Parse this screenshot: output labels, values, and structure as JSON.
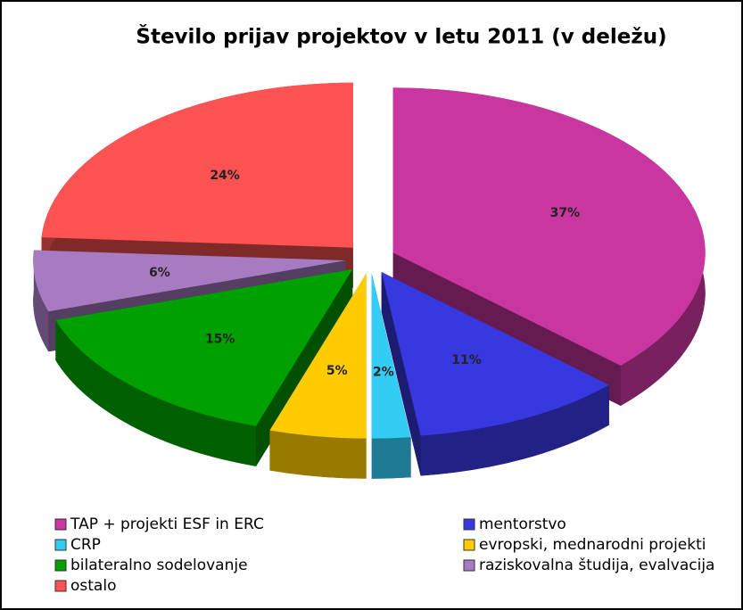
{
  "chart_data": {
    "type": "pie",
    "title": "Število prijav projektov v letu 2011 (v deležu)",
    "categories": [
      "TAP + projekti ESF in ERC",
      "mentorstvo",
      "CRP",
      "evropski, mednarodni projekti",
      "bilateralno sodelovanje",
      "raziskovalna študija, evalvacija",
      "ostalo"
    ],
    "values": [
      37,
      11,
      2,
      5,
      15,
      6,
      24
    ],
    "value_labels": [
      "37%",
      "11%",
      "2%",
      "5%",
      "15%",
      "6%",
      "24%"
    ],
    "colors": [
      "#c9369f",
      "#3838e0",
      "#33ccf5",
      "#ffcc00",
      "#00a000",
      "#a77bc2",
      "#ff5252"
    ],
    "legend": "bottom"
  }
}
